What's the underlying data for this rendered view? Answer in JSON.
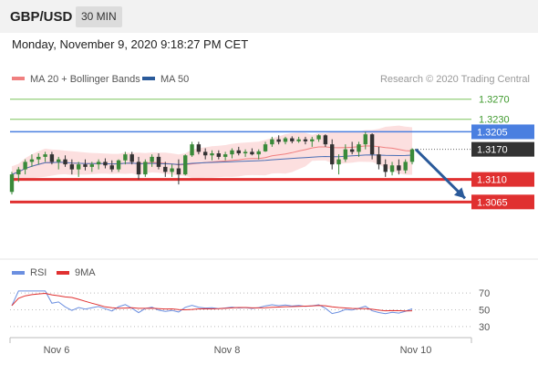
{
  "header": {
    "pair": "GBP/USD",
    "timeframe": "30 MIN",
    "datetime": "Monday, November 9, 2020 9:18:27 PM CET"
  },
  "chart_data": {
    "type": "candlestick",
    "legend": [
      "MA 20 + Bollinger Bands",
      "MA 50"
    ],
    "copyright": "Research © 2020 Trading Central",
    "price_axis": {
      "ylim": [
        1.296,
        1.3295
      ]
    },
    "levels": [
      {
        "value": 1.327,
        "label": "1.3270",
        "color": "#7cc35b",
        "type": "resistance"
      },
      {
        "value": 1.323,
        "label": "1.3230",
        "color": "#7cc35b",
        "type": "resistance"
      },
      {
        "value": 1.3205,
        "label": "1.3205",
        "color": "#4a7fe0",
        "type": "pivot"
      },
      {
        "value": 1.317,
        "label": "1.3170",
        "color": "#333333",
        "type": "last_price"
      },
      {
        "value": 1.311,
        "label": "1.3110",
        "color": "#e03030",
        "type": "support"
      },
      {
        "value": 1.3065,
        "label": "1.3065",
        "color": "#e03030",
        "type": "support"
      }
    ],
    "forecast_arrow": {
      "from": 1.317,
      "to": 1.3065,
      "color": "#2a5a9a"
    },
    "x_labels": [
      "Nov 6",
      "Nov 8",
      "Nov 10"
    ],
    "candles": [
      [
        1.3085,
        1.3125,
        1.308,
        1.312
      ],
      [
        1.312,
        1.3135,
        1.3105,
        1.313
      ],
      [
        1.313,
        1.315,
        1.312,
        1.3145
      ],
      [
        1.3145,
        1.316,
        1.3135,
        1.315
      ],
      [
        1.315,
        1.3162,
        1.314,
        1.3155
      ],
      [
        1.3155,
        1.3165,
        1.3145,
        1.316
      ],
      [
        1.316,
        1.3165,
        1.314,
        1.3145
      ],
      [
        1.3145,
        1.3155,
        1.313,
        1.315
      ],
      [
        1.315,
        1.3158,
        1.3135,
        1.314
      ],
      [
        1.314,
        1.315,
        1.312,
        1.313
      ],
      [
        1.313,
        1.3145,
        1.3115,
        1.314
      ],
      [
        1.314,
        1.315,
        1.3128,
        1.3135
      ],
      [
        1.3135,
        1.3145,
        1.3125,
        1.314
      ],
      [
        1.314,
        1.315,
        1.313,
        1.3145
      ],
      [
        1.3145,
        1.3152,
        1.3132,
        1.3138
      ],
      [
        1.3138,
        1.3148,
        1.3125,
        1.313
      ],
      [
        1.313,
        1.315,
        1.3125,
        1.3148
      ],
      [
        1.3148,
        1.3165,
        1.314,
        1.316
      ],
      [
        1.316,
        1.3165,
        1.314,
        1.3145
      ],
      [
        1.3145,
        1.3155,
        1.311,
        1.312
      ],
      [
        1.312,
        1.315,
        1.3115,
        1.3145
      ],
      [
        1.3145,
        1.316,
        1.3135,
        1.3155
      ],
      [
        1.3155,
        1.3162,
        1.313,
        1.3135
      ],
      [
        1.3135,
        1.3145,
        1.3115,
        1.3125
      ],
      [
        1.3125,
        1.314,
        1.3115,
        1.3132
      ],
      [
        1.3132,
        1.315,
        1.31,
        1.312
      ],
      [
        1.312,
        1.316,
        1.3118,
        1.3158
      ],
      [
        1.3158,
        1.3185,
        1.3155,
        1.318
      ],
      [
        1.318,
        1.3185,
        1.316,
        1.3165
      ],
      [
        1.3165,
        1.3172,
        1.315,
        1.3158
      ],
      [
        1.3158,
        1.3168,
        1.3148,
        1.3162
      ],
      [
        1.3162,
        1.3168,
        1.315,
        1.3155
      ],
      [
        1.3155,
        1.3165,
        1.3148,
        1.316
      ],
      [
        1.316,
        1.3172,
        1.3152,
        1.3168
      ],
      [
        1.3168,
        1.3175,
        1.3158,
        1.3162
      ],
      [
        1.3162,
        1.317,
        1.3155,
        1.3165
      ],
      [
        1.3165,
        1.3172,
        1.3158,
        1.316
      ],
      [
        1.316,
        1.317,
        1.315,
        1.3166
      ],
      [
        1.3166,
        1.3185,
        1.3165,
        1.318
      ],
      [
        1.318,
        1.3195,
        1.3175,
        1.319
      ],
      [
        1.319,
        1.3198,
        1.318,
        1.3185
      ],
      [
        1.3185,
        1.3195,
        1.318,
        1.3192
      ],
      [
        1.3192,
        1.3196,
        1.3182,
        1.3186
      ],
      [
        1.3186,
        1.3195,
        1.3183,
        1.319
      ],
      [
        1.319,
        1.3195,
        1.318,
        1.3186
      ],
      [
        1.3186,
        1.3195,
        1.3175,
        1.319
      ],
      [
        1.319,
        1.32,
        1.3185,
        1.3198
      ],
      [
        1.3198,
        1.32,
        1.3175,
        1.318
      ],
      [
        1.318,
        1.319,
        1.313,
        1.314
      ],
      [
        1.314,
        1.316,
        1.312,
        1.315
      ],
      [
        1.315,
        1.318,
        1.3145,
        1.317
      ],
      [
        1.317,
        1.3185,
        1.316,
        1.3165
      ],
      [
        1.3165,
        1.3185,
        1.3155,
        1.318
      ],
      [
        1.318,
        1.3205,
        1.317,
        1.32
      ],
      [
        1.32,
        1.3202,
        1.315,
        1.316
      ],
      [
        1.316,
        1.3175,
        1.313,
        1.314
      ],
      [
        1.314,
        1.315,
        1.3115,
        1.3125
      ],
      [
        1.3125,
        1.3145,
        1.3118,
        1.3138
      ],
      [
        1.3138,
        1.315,
        1.312,
        1.3128
      ],
      [
        1.3128,
        1.315,
        1.3122,
        1.3145
      ],
      [
        1.3145,
        1.3172,
        1.314,
        1.317
      ]
    ],
    "rsi_panel": {
      "legend": [
        "RSI",
        "9MA"
      ],
      "ylim": [
        20,
        80
      ],
      "y_ticks": [
        70,
        50,
        30
      ]
    }
  },
  "colors": {
    "up_candle": "#3a8a3a",
    "down_candle": "#333333",
    "bollinger_fill": "#fbd9d9",
    "ma20": "#f08080",
    "ma50": "#4a6fb5",
    "rsi": "#6b8fe0",
    "rsi_ma": "#e03030"
  }
}
